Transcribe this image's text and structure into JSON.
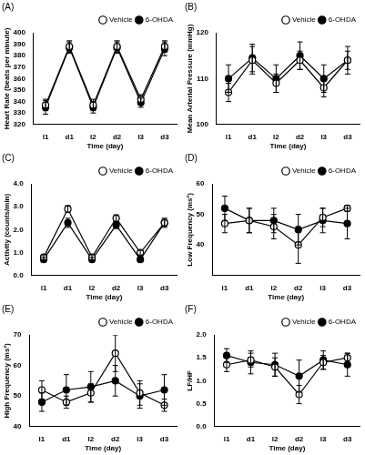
{
  "chart_data": [
    {
      "type": "line",
      "title": "(A)",
      "x_label": "Time (day)",
      "y_label": "Heart Rate (beats per minute)",
      "categories": [
        "l1",
        "d1",
        "l2",
        "d2",
        "l3",
        "d3"
      ],
      "series": [
        {
          "name": "Vehicle",
          "color": "#000000",
          "marker": "open circle",
          "values": [
            337,
            388,
            337,
            388,
            342,
            388
          ],
          "errors": [
            5,
            5,
            5,
            5,
            4,
            5
          ]
        },
        {
          "name": "6-OHDA",
          "color": "#000000",
          "marker": "filled circle",
          "values": [
            335,
            387,
            335,
            387,
            339,
            386
          ],
          "errors": [
            6,
            5,
            5,
            5,
            4,
            6
          ]
        }
      ],
      "ylim": [
        320,
        400
      ],
      "yticks": [
        320,
        330,
        340,
        350,
        360,
        370,
        380,
        390,
        400
      ],
      "legend": "upper right",
      "grid": false
    },
    {
      "type": "line",
      "title": "(B)",
      "x_label": "Time (day)",
      "y_label": "Mean Arterial Pressure (mmHg)",
      "categories": [
        "l1",
        "d1",
        "l2",
        "d2",
        "l3",
        "d3"
      ],
      "series": [
        {
          "name": "Vehicle",
          "color": "#000000",
          "marker": "open circle",
          "values": [
            107,
            114,
            109,
            114,
            108,
            114
          ],
          "errors": [
            2,
            3,
            2,
            2,
            2,
            2
          ]
        },
        {
          "name": "6-OHDA",
          "color": "#000000",
          "marker": "filled circle",
          "values": [
            110,
            114.5,
            110,
            115,
            110,
            114
          ],
          "errors": [
            3,
            3,
            3,
            3,
            3,
            3
          ]
        }
      ],
      "ylim": [
        100,
        120
      ],
      "yticks": [
        100,
        110,
        120
      ],
      "legend": "upper right",
      "grid": false
    },
    {
      "type": "line",
      "title": "(C)",
      "x_label": "Time (day)",
      "y_label": "Activity (counts/min)",
      "categories": [
        "l1",
        "d1",
        "l2",
        "d2",
        "l3",
        "d3"
      ],
      "series": [
        {
          "name": "Vehicle",
          "color": "#000000",
          "marker": "open circle",
          "values": [
            0.8,
            2.9,
            0.8,
            2.5,
            1.0,
            2.3
          ],
          "errors": [
            0.1,
            0.15,
            0.1,
            0.15,
            0.1,
            0.15
          ]
        },
        {
          "name": "6-OHDA",
          "color": "#000000",
          "marker": "filled circle",
          "values": [
            0.7,
            2.3,
            0.7,
            2.2,
            0.7,
            2.3
          ],
          "errors": [
            0.1,
            0.2,
            0.1,
            0.15,
            0.1,
            0.2
          ]
        }
      ],
      "ylim": [
        0,
        4
      ],
      "yticks": [
        {
          "value": 0,
          "label": "0.0"
        },
        {
          "value": 1,
          "label": "1.0"
        },
        {
          "value": 2,
          "label": "2.0"
        },
        {
          "value": 3,
          "label": "3.0"
        },
        {
          "value": 4,
          "label": "4.0"
        }
      ],
      "legend": "upper right",
      "grid": false
    },
    {
      "type": "line",
      "title": "(D)",
      "x_label": "Time (day)",
      "y_label": "Low Frequency (ms²)",
      "categories": [
        "l1",
        "d1",
        "l2",
        "d2",
        "l3",
        "d3"
      ],
      "series": [
        {
          "name": "Vehicle",
          "color": "#000000",
          "marker": "open circle",
          "values": [
            47,
            48,
            46,
            40,
            49,
            52
          ],
          "errors": [
            3,
            4,
            4,
            6,
            3,
            1
          ]
        },
        {
          "name": "6-OHDA",
          "color": "#000000",
          "marker": "filled circle",
          "values": [
            52,
            48,
            48,
            45,
            48,
            47
          ],
          "errors": [
            4,
            4,
            4,
            5,
            4,
            5
          ]
        }
      ],
      "ylim": [
        30,
        60
      ],
      "yticks": [
        40,
        50,
        60
      ],
      "legend": "upper right",
      "grid": false
    },
    {
      "type": "line",
      "title": "(E)",
      "x_label": "Time (day)",
      "y_label": "High Frequency (ms²)",
      "categories": [
        "l1",
        "d1",
        "l2",
        "d2",
        "l3",
        "d3"
      ],
      "series": [
        {
          "name": "Vehicle",
          "color": "#000000",
          "marker": "open circle",
          "values": [
            52,
            48,
            51,
            64,
            51,
            47
          ],
          "errors": [
            3,
            2,
            3,
            6,
            4,
            2
          ]
        },
        {
          "name": "6-OHDA",
          "color": "#000000",
          "marker": "filled circle",
          "values": [
            48,
            52,
            53,
            55,
            50,
            52
          ],
          "errors": [
            3,
            5,
            5,
            5,
            4,
            5
          ]
        }
      ],
      "ylim": [
        40,
        70
      ],
      "yticks": [
        40,
        50,
        60,
        70
      ],
      "legend": "upper right",
      "grid": false
    },
    {
      "type": "line",
      "title": "(F)",
      "x_label": "Time (day)",
      "y_label": "LF/HF",
      "categories": [
        "l1",
        "d1",
        "l2",
        "d2",
        "l3",
        "d3"
      ],
      "series": [
        {
          "name": "Vehicle",
          "color": "#000000",
          "marker": "open circle",
          "values": [
            1.35,
            1.45,
            1.3,
            0.7,
            1.4,
            1.5
          ],
          "errors": [
            0.15,
            0.15,
            0.2,
            0.2,
            0.15,
            0.1
          ]
        },
        {
          "name": "6-OHDA",
          "color": "#000000",
          "marker": "filled circle",
          "values": [
            1.55,
            1.4,
            1.35,
            1.1,
            1.45,
            1.35
          ],
          "errors": [
            0.15,
            0.25,
            0.25,
            0.35,
            0.2,
            0.25
          ]
        }
      ],
      "ylim": [
        0,
        2
      ],
      "yticks": [
        {
          "value": 0,
          "label": "0.0"
        },
        {
          "value": 0.5,
          "label": "0.5"
        },
        {
          "value": 1,
          "label": "1.0"
        },
        {
          "value": 1.5,
          "label": "1.5"
        },
        {
          "value": 2,
          "label": "2.0"
        }
      ],
      "legend": "upper right",
      "grid": false
    }
  ]
}
